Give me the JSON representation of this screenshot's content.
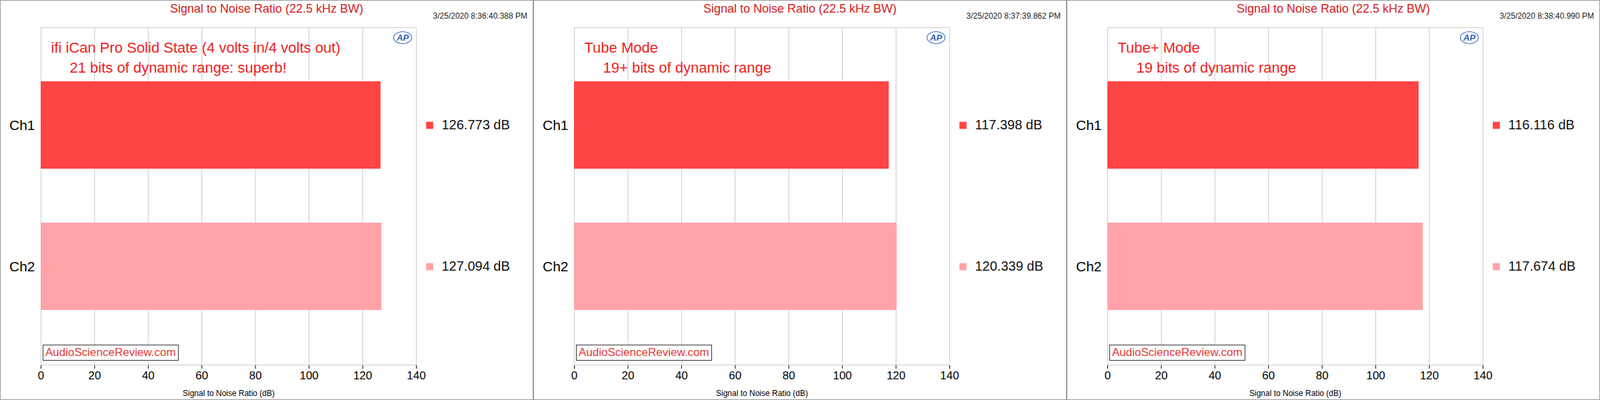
{
  "chart_data": [
    {
      "type": "bar",
      "orientation": "horizontal",
      "title": "Signal to Noise Ratio (22.5 kHz BW)",
      "subtitle": "3/25/2020 8:36:40.388 PM",
      "annotations": [
        "ifi iCan Pro Solid State (4 volts in/4 volts out)",
        "21 bits of dynamic range: superb!"
      ],
      "source": "AudioScienceReview.com",
      "logo": "AP",
      "categories": [
        "Ch1",
        "Ch2"
      ],
      "values": [
        126.773,
        127.094
      ],
      "value_labels": [
        "126.773 dB",
        "127.094 dB"
      ],
      "colors": [
        "#ff4444",
        "#ffa3a8"
      ],
      "xlabel": "Signal to Noise Ratio (dB)",
      "xlim": [
        0,
        140
      ],
      "xticks": [
        0,
        20,
        40,
        60,
        80,
        100,
        120,
        140
      ],
      "grid": true,
      "data_labels": true
    },
    {
      "type": "bar",
      "orientation": "horizontal",
      "title": "Signal to Noise Ratio (22.5 kHz BW)",
      "subtitle": "3/25/2020 8:37:39.862 PM",
      "annotations": [
        "Tube Mode",
        "19+ bits of dynamic range"
      ],
      "source": "AudioScienceReview.com",
      "logo": "AP",
      "categories": [
        "Ch1",
        "Ch2"
      ],
      "values": [
        117.398,
        120.339
      ],
      "value_labels": [
        "117.398 dB",
        "120.339 dB"
      ],
      "colors": [
        "#ff4444",
        "#ffa3a8"
      ],
      "xlabel": "Signal to Noise Ratio (dB)",
      "xlim": [
        0,
        140
      ],
      "xticks": [
        0,
        20,
        40,
        60,
        80,
        100,
        120,
        140
      ],
      "grid": true,
      "data_labels": true
    },
    {
      "type": "bar",
      "orientation": "horizontal",
      "title": "Signal to Noise Ratio (22.5 kHz BW)",
      "subtitle": "3/25/2020 8:38:40.990 PM",
      "annotations": [
        "Tube+ Mode",
        "19 bits of dynamic range"
      ],
      "source": "AudioScienceReview.com",
      "logo": "AP",
      "categories": [
        "Ch1",
        "Ch2"
      ],
      "values": [
        116.116,
        117.674
      ],
      "value_labels": [
        "116.116 dB",
        "117.674 dB"
      ],
      "colors": [
        "#ff4444",
        "#ffa3a8"
      ],
      "xlabel": "Signal to Noise Ratio (dB)",
      "xlim": [
        0,
        140
      ],
      "xticks": [
        0,
        20,
        40,
        60,
        80,
        100,
        120,
        140
      ],
      "grid": true,
      "data_labels": true
    }
  ]
}
